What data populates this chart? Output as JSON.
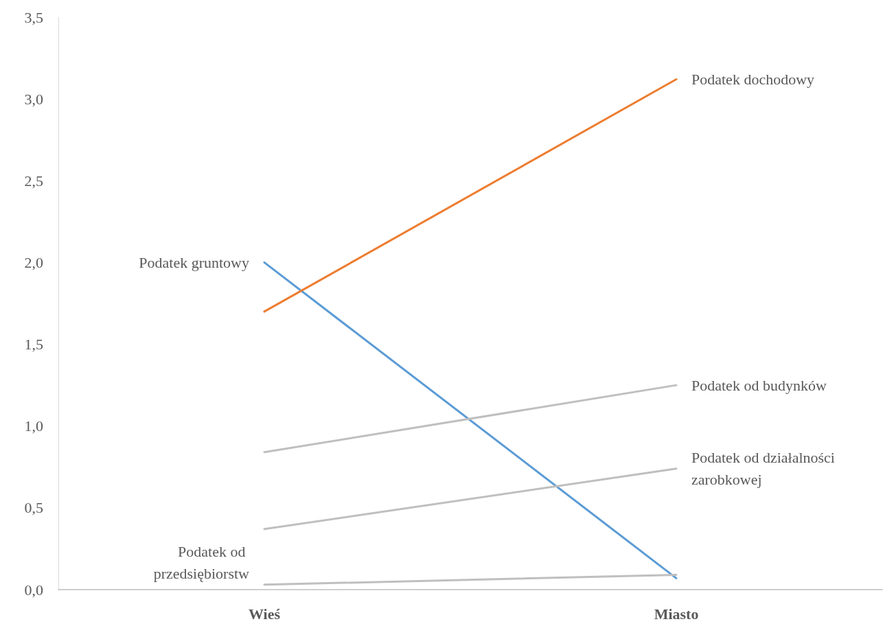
{
  "chart_data": {
    "type": "line",
    "categories": [
      "Wieś",
      "Miasto"
    ],
    "series": [
      {
        "color": "#5b9bd5",
        "values": [
          2.0,
          0.07
        ]
      },
      {
        "color": "#ed7d31",
        "values": [
          1.7,
          3.12
        ]
      },
      {
        "color": "#bfbfbf",
        "values": [
          0.84,
          1.25
        ]
      },
      {
        "color": "#bfbfbf",
        "values": [
          0.37,
          0.74
        ]
      },
      {
        "color": "#bfbfbf",
        "values": [
          0.03,
          0.09
        ]
      }
    ],
    "ylim": [
      0,
      3.5
    ],
    "yticks": [
      {
        "value": 0,
        "label": "0,0"
      },
      {
        "value": 0.5,
        "label": "0,5"
      },
      {
        "value": 1,
        "label": "1,0"
      },
      {
        "value": 1.5,
        "label": "1,5"
      },
      {
        "value": 2,
        "label": "2,0"
      },
      {
        "value": 2.5,
        "label": "2,5"
      },
      {
        "value": 3,
        "label": "3,0"
      },
      {
        "value": 3.5,
        "label": "3,5"
      }
    ],
    "grid": false,
    "marker": "none",
    "line_style": "solid",
    "annotations": [
      {
        "text": "Podatek gruntowy",
        "x": "Wieś",
        "y": 2.0
      },
      {
        "text": "Podatek od przedsiębiorstw",
        "x": "Wieś",
        "y": 0.03
      },
      {
        "text": "Podatek dochodowy",
        "x": "Miasto",
        "y": 3.12
      },
      {
        "text": "Podatek od budynków",
        "x": "Miasto",
        "y": 1.25
      },
      {
        "text": "Podatek od działalności zarobkowej",
        "x": "Miasto",
        "y": 0.74
      }
    ]
  }
}
